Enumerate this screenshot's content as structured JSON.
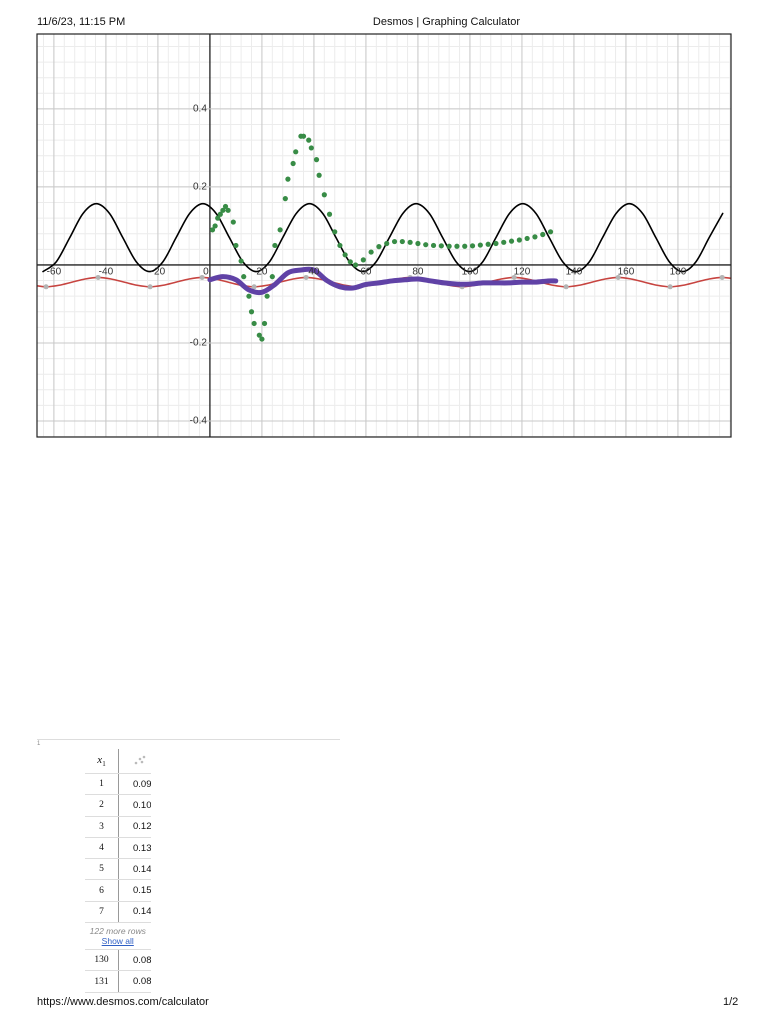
{
  "header": {
    "datetime": "11/6/23, 11:15 PM",
    "title": "Desmos | Graphing Calculator"
  },
  "chart_data": {
    "type": "line",
    "xlim": [
      -66.5,
      200.4
    ],
    "ylim": [
      -0.441,
      0.592
    ],
    "xticks": [
      -60,
      -40,
      -20,
      0,
      20,
      40,
      60,
      80,
      100,
      120,
      140,
      160,
      180
    ],
    "yticks": [
      -0.4,
      -0.2,
      0.2,
      0.4
    ],
    "grid": true,
    "series": [
      {
        "color": "#000000",
        "mode": "line",
        "line_width": 1.6,
        "x": [
          -64.2,
          -59.1,
          -53.9,
          -48.8,
          -43.7,
          -38.6,
          -33.5,
          -28.3,
          -23.2,
          -18.1,
          -13.0,
          -7.8,
          -2.7,
          2.4,
          7.5,
          12.7,
          17.8,
          22.9,
          28.0,
          33.2,
          38.3,
          43.4,
          48.5,
          53.7,
          58.8,
          63.9,
          69.0,
          74.2,
          79.3,
          84.4,
          89.5,
          94.7,
          99.8,
          104.9,
          110.0,
          115.2,
          120.3,
          125.4,
          130.5,
          135.7,
          140.8,
          145.9,
          151.0,
          156.2,
          161.3,
          166.4,
          171.5,
          176.7,
          181.8,
          186.9,
          192.0,
          197.2
        ],
        "values": [
          -0.017,
          0.008,
          0.07,
          0.132,
          0.157,
          0.132,
          0.07,
          0.008,
          -0.017,
          0.008,
          0.07,
          0.132,
          0.157,
          0.132,
          0.07,
          0.008,
          -0.017,
          0.008,
          0.07,
          0.132,
          0.157,
          0.132,
          0.07,
          0.008,
          -0.017,
          0.008,
          0.07,
          0.132,
          0.157,
          0.132,
          0.07,
          0.008,
          -0.017,
          0.008,
          0.07,
          0.132,
          0.157,
          0.132,
          0.07,
          0.008,
          -0.017,
          0.008,
          0.07,
          0.132,
          0.157,
          0.132,
          0.07,
          0.008,
          -0.017,
          0.008,
          0.07,
          0.132
        ]
      },
      {
        "color": "#c74440",
        "mode": "line",
        "line_width": 1.6,
        "x": [
          -68,
          -63,
          -58,
          -53,
          -48,
          -43,
          -38,
          -33,
          -28,
          -23,
          -18,
          -13,
          -8,
          -3,
          2,
          7,
          12,
          17,
          22,
          27,
          32,
          37,
          42,
          47,
          52,
          57,
          62,
          67,
          72,
          77,
          82,
          87,
          92,
          97,
          102,
          107,
          112,
          117,
          122,
          127,
          132,
          137,
          142,
          147,
          152,
          157,
          162,
          167,
          172,
          177,
          182,
          187,
          192,
          197,
          202
        ],
        "values": [
          -0.052,
          -0.056,
          -0.052,
          -0.044,
          -0.036,
          -0.032,
          -0.036,
          -0.044,
          -0.052,
          -0.056,
          -0.052,
          -0.044,
          -0.036,
          -0.032,
          -0.036,
          -0.044,
          -0.052,
          -0.056,
          -0.052,
          -0.044,
          -0.036,
          -0.032,
          -0.036,
          -0.044,
          -0.052,
          -0.056,
          -0.052,
          -0.044,
          -0.036,
          -0.032,
          -0.036,
          -0.044,
          -0.052,
          -0.056,
          -0.052,
          -0.044,
          -0.036,
          -0.032,
          -0.036,
          -0.044,
          -0.052,
          -0.056,
          -0.052,
          -0.044,
          -0.036,
          -0.032,
          -0.036,
          -0.044,
          -0.052,
          -0.056,
          -0.052,
          -0.044,
          -0.036,
          -0.032,
          -0.036
        ]
      },
      {
        "color": "#b4b4b4",
        "mode": "points",
        "radius": 2.5,
        "x": [
          -63,
          -43,
          -23,
          -3,
          17,
          37,
          57,
          77,
          97,
          117,
          137,
          157,
          177,
          197
        ],
        "values": [
          -0.056,
          -0.032,
          -0.056,
          -0.032,
          -0.056,
          -0.032,
          -0.056,
          -0.032,
          -0.056,
          -0.032,
          -0.056,
          -0.032,
          -0.056,
          -0.032
        ]
      },
      {
        "color": "#6042a6",
        "mode": "line",
        "line_width": 5,
        "x": [
          0,
          5,
          10,
          15,
          20,
          25,
          30,
          35,
          40,
          45,
          50,
          55,
          60,
          65,
          70,
          75,
          80,
          85,
          90,
          95,
          100,
          105,
          110,
          115,
          120,
          125,
          130,
          133
        ],
        "values": [
          -0.038,
          -0.03,
          -0.038,
          -0.064,
          -0.07,
          -0.05,
          -0.02,
          -0.013,
          -0.013,
          -0.04,
          -0.056,
          -0.059,
          -0.05,
          -0.046,
          -0.041,
          -0.038,
          -0.036,
          -0.041,
          -0.046,
          -0.049,
          -0.049,
          -0.046,
          -0.046,
          -0.046,
          -0.044,
          -0.044,
          -0.041,
          -0.041
        ]
      },
      {
        "color": "#388c46",
        "mode": "points",
        "radius": 2.6,
        "x": [
          1,
          2,
          3,
          4,
          5,
          6,
          7,
          9,
          10,
          12,
          13,
          15,
          16,
          17,
          19,
          20,
          21,
          22,
          24,
          25,
          27,
          29,
          30,
          32,
          33,
          35,
          36,
          38,
          39,
          41,
          42,
          44,
          46,
          48,
          50,
          52,
          54,
          56,
          59,
          62,
          65,
          68,
          71,
          74,
          77,
          80,
          83,
          86,
          89,
          92,
          95,
          98,
          101,
          104,
          107,
          110,
          113,
          116,
          119,
          122,
          125,
          128,
          131
        ],
        "values": [
          0.09,
          0.1,
          0.12,
          0.13,
          0.14,
          0.15,
          0.14,
          0.11,
          0.05,
          0.01,
          -0.03,
          -0.08,
          -0.12,
          -0.15,
          -0.18,
          -0.19,
          -0.15,
          -0.08,
          -0.03,
          0.05,
          0.09,
          0.17,
          0.22,
          0.26,
          0.29,
          0.33,
          0.33,
          0.32,
          0.3,
          0.27,
          0.23,
          0.18,
          0.13,
          0.085,
          0.05,
          0.026,
          0.008,
          0,
          0.013,
          0.033,
          0.047,
          0.055,
          0.06,
          0.06,
          0.058,
          0.055,
          0.052,
          0.05,
          0.049,
          0.048,
          0.048,
          0.048,
          0.049,
          0.051,
          0.053,
          0.055,
          0.058,
          0.061,
          0.064,
          0.068,
          0.072,
          0.078,
          0.085
        ]
      }
    ]
  },
  "table": {
    "expression_label": "1",
    "header": {
      "var": "x",
      "sub": "1"
    },
    "rows": [
      [
        "1",
        "0.09"
      ],
      [
        "2",
        "0.10"
      ],
      [
        "3",
        "0.12"
      ],
      [
        "4",
        "0.13"
      ],
      [
        "5",
        "0.14"
      ],
      [
        "6",
        "0.15"
      ],
      [
        "7",
        "0.14"
      ]
    ],
    "more_rows": "122 more rows",
    "show_all": "Show all",
    "tail_rows": [
      [
        "130",
        "0.08"
      ],
      [
        "131",
        "0.08"
      ]
    ]
  },
  "footer": {
    "url": "https://www.desmos.com/calculator",
    "page": "1/2"
  }
}
